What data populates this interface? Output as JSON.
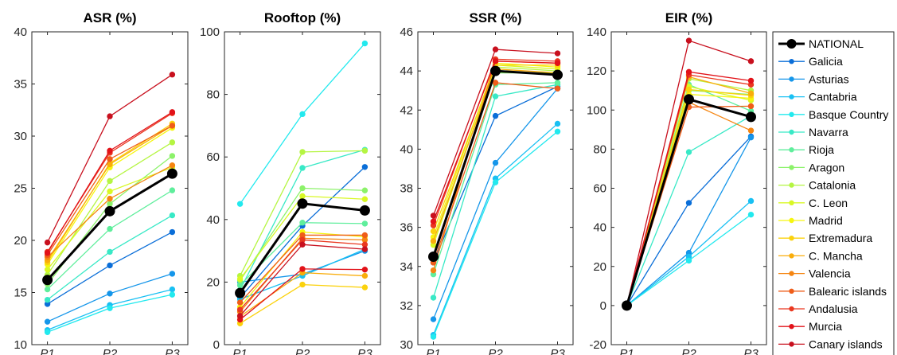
{
  "x_ticks": [
    "P1",
    "P2",
    "P3"
  ],
  "legend_placement": "right",
  "series": [
    {
      "name": "NATIONAL",
      "color": "#000000"
    },
    {
      "name": "Galicia",
      "color": "#0a6ed8"
    },
    {
      "name": "Asturias",
      "color": "#1596ea"
    },
    {
      "name": "Cantabria",
      "color": "#19c0f3"
    },
    {
      "name": "Basque Country",
      "color": "#22e9ee"
    },
    {
      "name": "Navarra",
      "color": "#38e9c6"
    },
    {
      "name": "Rioja",
      "color": "#5fee9c"
    },
    {
      "name": "Aragon",
      "color": "#8cf26a"
    },
    {
      "name": "Catalonia",
      "color": "#b5f542"
    },
    {
      "name": "C. Leon",
      "color": "#d9f824"
    },
    {
      "name": "Madrid",
      "color": "#f6f60f"
    },
    {
      "name": "Extremadura",
      "color": "#fbd20d"
    },
    {
      "name": "C. Mancha",
      "color": "#f9ad0b"
    },
    {
      "name": "Valencia",
      "color": "#f58511"
    },
    {
      "name": "Balearic islands",
      "color": "#ef5d19"
    },
    {
      "name": "Andalusia",
      "color": "#ea3820"
    },
    {
      "name": "Murcia",
      "color": "#e21219"
    },
    {
      "name": "Canary islands",
      "color": "#c8101e"
    }
  ],
  "chart_data": [
    {
      "type": "line",
      "title": "ASR (%)",
      "x": [
        "P1",
        "P2",
        "P3"
      ],
      "ylim": [
        10,
        40
      ],
      "yticks": [
        10,
        15,
        20,
        25,
        30,
        35,
        40
      ],
      "grid": false,
      "series": [
        {
          "name": "NATIONAL",
          "values": [
            16.2,
            22.8,
            26.4
          ]
        },
        {
          "name": "Galicia",
          "values": [
            13.9,
            17.6,
            20.8
          ]
        },
        {
          "name": "Asturias",
          "values": [
            12.2,
            14.9,
            16.8
          ]
        },
        {
          "name": "Cantabria",
          "values": [
            11.4,
            13.8,
            15.3
          ]
        },
        {
          "name": "Basque Country",
          "values": [
            11.2,
            13.5,
            14.8
          ]
        },
        {
          "name": "Navarra",
          "values": [
            14.3,
            18.9,
            22.4
          ]
        },
        {
          "name": "Rioja",
          "values": [
            15.3,
            21.1,
            24.8
          ]
        },
        {
          "name": "Aragon",
          "values": [
            15.8,
            23.5,
            28.1
          ]
        },
        {
          "name": "Catalonia",
          "values": [
            16.7,
            25.7,
            29.4
          ]
        },
        {
          "name": "C. Leon",
          "values": [
            17.2,
            24.7,
            27.0
          ]
        },
        {
          "name": "Madrid",
          "values": [
            17.7,
            27.0,
            30.8
          ]
        },
        {
          "name": "Extremadura",
          "values": [
            17.9,
            27.4,
            31.2
          ]
        },
        {
          "name": "C. Mancha",
          "values": [
            18.1,
            27.3,
            31.0
          ]
        },
        {
          "name": "Valencia",
          "values": [
            18.4,
            24.0,
            27.2
          ]
        },
        {
          "name": "Balearic islands",
          "values": [
            18.6,
            27.8,
            31.0
          ]
        },
        {
          "name": "Andalusia",
          "values": [
            18.9,
            28.4,
            32.2
          ]
        },
        {
          "name": "Murcia",
          "values": [
            18.8,
            28.6,
            32.3
          ]
        },
        {
          "name": "Canary islands",
          "values": [
            19.8,
            31.9,
            35.9
          ]
        }
      ]
    },
    {
      "type": "line",
      "title": "Rooftop (%)",
      "x": [
        "P1",
        "P2",
        "P3"
      ],
      "ylim": [
        0,
        100
      ],
      "yticks": [
        0,
        20,
        40,
        60,
        80,
        100
      ],
      "grid": false,
      "series": [
        {
          "name": "NATIONAL",
          "values": [
            16.5,
            45.1,
            42.9
          ]
        },
        {
          "name": "Galicia",
          "values": [
            15.0,
            38.0,
            56.8
          ]
        },
        {
          "name": "Asturias",
          "values": [
            20.0,
            22.5,
            30.0
          ]
        },
        {
          "name": "Cantabria",
          "values": [
            14.5,
            22.0,
            30.5
          ]
        },
        {
          "name": "Basque Country",
          "values": [
            45.0,
            73.7,
            96.3
          ]
        },
        {
          "name": "Navarra",
          "values": [
            17.5,
            56.5,
            62.3
          ]
        },
        {
          "name": "Rioja",
          "values": [
            19.0,
            39.0,
            38.7
          ]
        },
        {
          "name": "Aragon",
          "values": [
            20.5,
            50.0,
            49.3
          ]
        },
        {
          "name": "Catalonia",
          "values": [
            22.0,
            61.6,
            62.0
          ]
        },
        {
          "name": "C. Leon",
          "values": [
            21.0,
            47.5,
            46.5
          ]
        },
        {
          "name": "Madrid",
          "values": [
            12.0,
            36.0,
            34.5
          ]
        },
        {
          "name": "Extremadura",
          "values": [
            6.8,
            19.2,
            18.3
          ]
        },
        {
          "name": "C. Mancha",
          "values": [
            9.0,
            23.0,
            22.0
          ]
        },
        {
          "name": "Valencia",
          "values": [
            10.5,
            34.0,
            33.5
          ]
        },
        {
          "name": "Balearic islands",
          "values": [
            13.5,
            35.0,
            35.0
          ]
        },
        {
          "name": "Andalusia",
          "values": [
            11.2,
            33.5,
            32.0
          ]
        },
        {
          "name": "Murcia",
          "values": [
            8.0,
            24.2,
            24.0
          ]
        },
        {
          "name": "Canary islands",
          "values": [
            9.2,
            32.0,
            30.5
          ]
        }
      ]
    },
    {
      "type": "line",
      "title": "SSR (%)",
      "x": [
        "P1",
        "P2",
        "P3"
      ],
      "ylim": [
        30,
        46
      ],
      "yticks": [
        30,
        32,
        34,
        36,
        38,
        40,
        42,
        44,
        46
      ],
      "grid": false,
      "series": [
        {
          "name": "NATIONAL",
          "values": [
            34.5,
            44.0,
            43.8
          ]
        },
        {
          "name": "Galicia",
          "values": [
            34.2,
            41.7,
            43.2
          ]
        },
        {
          "name": "Asturias",
          "values": [
            31.3,
            39.3,
            43.1
          ]
        },
        {
          "name": "Cantabria",
          "values": [
            30.5,
            38.5,
            41.3
          ]
        },
        {
          "name": "Basque Country",
          "values": [
            30.4,
            38.3,
            40.9
          ]
        },
        {
          "name": "Navarra",
          "values": [
            32.4,
            42.7,
            43.3
          ]
        },
        {
          "name": "Rioja",
          "values": [
            33.6,
            43.3,
            43.4
          ]
        },
        {
          "name": "Aragon",
          "values": [
            34.6,
            43.9,
            43.9
          ]
        },
        {
          "name": "Catalonia",
          "values": [
            35.3,
            44.2,
            44.0
          ]
        },
        {
          "name": "C. Leon",
          "values": [
            35.1,
            44.3,
            44.1
          ]
        },
        {
          "name": "Madrid",
          "values": [
            35.5,
            44.4,
            44.2
          ]
        },
        {
          "name": "Extremadura",
          "values": [
            35.8,
            44.3,
            44.3
          ]
        },
        {
          "name": "C. Mancha",
          "values": [
            35.3,
            44.1,
            43.9
          ]
        },
        {
          "name": "Valencia",
          "values": [
            33.8,
            44.5,
            44.4
          ]
        },
        {
          "name": "Balearic islands",
          "values": [
            34.2,
            43.4,
            43.1
          ]
        },
        {
          "name": "Andalusia",
          "values": [
            36.1,
            44.6,
            44.5
          ]
        },
        {
          "name": "Murcia",
          "values": [
            36.3,
            44.5,
            44.4
          ]
        },
        {
          "name": "Canary islands",
          "values": [
            36.6,
            45.1,
            44.9
          ]
        }
      ]
    },
    {
      "type": "line",
      "title": "EIR (%)",
      "x": [
        "P1",
        "P2",
        "P3"
      ],
      "ylim": [
        -20,
        140
      ],
      "yticks": [
        -20,
        0,
        20,
        40,
        60,
        80,
        100,
        120,
        140
      ],
      "grid": false,
      "series": [
        {
          "name": "NATIONAL",
          "values": [
            0,
            105.5,
            96.5
          ]
        },
        {
          "name": "Galicia",
          "values": [
            0,
            52.5,
            86.5
          ]
        },
        {
          "name": "Asturias",
          "values": [
            0,
            27.0,
            86.0
          ]
        },
        {
          "name": "Cantabria",
          "values": [
            0,
            25.0,
            53.5
          ]
        },
        {
          "name": "Basque Country",
          "values": [
            0,
            23.0,
            46.5
          ]
        },
        {
          "name": "Navarra",
          "values": [
            0,
            78.5,
            97.0
          ]
        },
        {
          "name": "Rioja",
          "values": [
            0,
            113.0,
            99.5
          ]
        },
        {
          "name": "Aragon",
          "values": [
            0,
            110.0,
            108.0
          ]
        },
        {
          "name": "Catalonia",
          "values": [
            0,
            116.0,
            110.0
          ]
        },
        {
          "name": "C. Leon",
          "values": [
            0,
            112.0,
            105.0
          ]
        },
        {
          "name": "Madrid",
          "values": [
            0,
            108.0,
            106.0
          ]
        },
        {
          "name": "Extremadura",
          "values": [
            0,
            110.5,
            107.5
          ]
        },
        {
          "name": "C. Mancha",
          "values": [
            0,
            117.0,
            108.5
          ]
        },
        {
          "name": "Valencia",
          "values": [
            0,
            104.0,
            89.5
          ]
        },
        {
          "name": "Balearic islands",
          "values": [
            0,
            101.5,
            102.0
          ]
        },
        {
          "name": "Andalusia",
          "values": [
            0,
            118.0,
            113.0
          ]
        },
        {
          "name": "Murcia",
          "values": [
            0,
            119.5,
            115.0
          ]
        },
        {
          "name": "Canary islands",
          "values": [
            0,
            135.5,
            125.0
          ]
        }
      ]
    }
  ]
}
